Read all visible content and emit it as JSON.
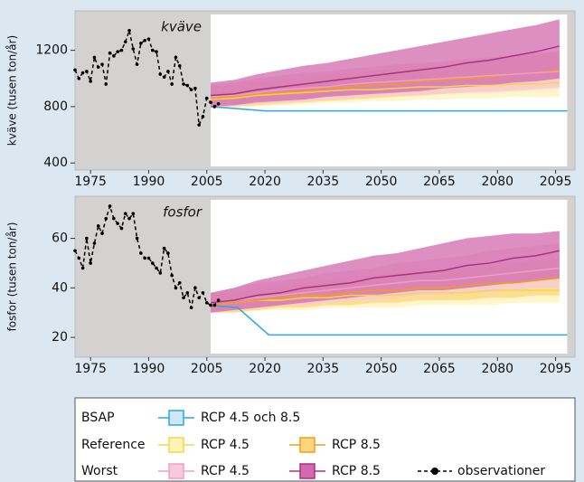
{
  "chart_data": [
    {
      "type": "line",
      "panel_label": "kväve",
      "y_label": "kväve (tusen ton/år)",
      "xlim": [
        1971,
        2100
      ],
      "xticks": [
        1975,
        1990,
        2005,
        2020,
        2035,
        2050,
        2065,
        2080,
        2095
      ],
      "ylim": [
        350,
        1480
      ],
      "yticks": [
        400,
        800,
        1200
      ],
      "projection_range": [
        2006,
        2098
      ],
      "series": [
        {
          "color": "#2aa7e0",
          "x": [
            2006,
            2020,
            2098
          ],
          "values": [
            800,
            770,
            770
          ]
        },
        {
          "color": "#f3d64a",
          "band_color": "#fff3b8",
          "x": [
            2006,
            2012,
            2018,
            2024,
            2030,
            2036,
            2042,
            2048,
            2054,
            2060,
            2066,
            2072,
            2078,
            2084,
            2090,
            2096
          ],
          "values": [
            850,
            860,
            880,
            890,
            900,
            910,
            920,
            920,
            930,
            940,
            940,
            950,
            950,
            960,
            960,
            970
          ],
          "low": [
            780,
            790,
            800,
            810,
            820,
            830,
            830,
            840,
            840,
            850,
            850,
            860,
            860,
            870,
            870,
            870
          ],
          "high": [
            930,
            940,
            960,
            980,
            990,
            1000,
            1010,
            1020,
            1030,
            1040,
            1040,
            1050,
            1060,
            1070,
            1070,
            1080
          ]
        },
        {
          "color": "#f29b1d",
          "band_color": "#fcd67c",
          "x": [
            2006,
            2012,
            2018,
            2024,
            2030,
            2036,
            2042,
            2048,
            2054,
            2060,
            2066,
            2072,
            2078,
            2084,
            2090,
            2096
          ],
          "values": [
            860,
            870,
            890,
            900,
            910,
            930,
            940,
            950,
            960,
            980,
            990,
            1000,
            1010,
            1030,
            1040,
            1060
          ],
          "low": [
            790,
            800,
            810,
            820,
            830,
            840,
            850,
            860,
            870,
            880,
            890,
            900,
            910,
            920,
            930,
            940
          ],
          "high": [
            940,
            950,
            980,
            990,
            1000,
            1030,
            1040,
            1060,
            1070,
            1090,
            1100,
            1120,
            1130,
            1150,
            1170,
            1190
          ]
        },
        {
          "color": "#ee9fc4",
          "band_color": "#f7c9de",
          "x": [
            2006,
            2012,
            2018,
            2024,
            2030,
            2036,
            2042,
            2048,
            2054,
            2060,
            2066,
            2072,
            2078,
            2084,
            2090,
            2096
          ],
          "values": [
            870,
            880,
            900,
            920,
            930,
            940,
            960,
            970,
            980,
            990,
            1000,
            1010,
            1020,
            1030,
            1040,
            1050
          ],
          "low": [
            800,
            800,
            820,
            830,
            840,
            850,
            860,
            870,
            880,
            880,
            890,
            900,
            900,
            910,
            920,
            930
          ],
          "high": [
            960,
            970,
            1000,
            1020,
            1040,
            1050,
            1070,
            1080,
            1100,
            1110,
            1120,
            1140,
            1150,
            1160,
            1180,
            1190
          ]
        },
        {
          "color": "#a8327f",
          "band_color": "#d16aae",
          "x": [
            2006,
            2012,
            2018,
            2024,
            2030,
            2036,
            2042,
            2048,
            2054,
            2060,
            2066,
            2072,
            2078,
            2084,
            2090,
            2096
          ],
          "values": [
            880,
            890,
            920,
            940,
            960,
            980,
            1000,
            1020,
            1040,
            1060,
            1080,
            1110,
            1130,
            1160,
            1190,
            1230
          ],
          "low": [
            800,
            810,
            830,
            840,
            850,
            870,
            880,
            890,
            900,
            910,
            930,
            940,
            950,
            970,
            980,
            1000
          ],
          "high": [
            970,
            990,
            1030,
            1060,
            1090,
            1110,
            1140,
            1170,
            1200,
            1230,
            1260,
            1290,
            1320,
            1350,
            1380,
            1420
          ]
        },
        {
          "color": "#000000",
          "style": "dashed",
          "markers": true,
          "x": [
            1971,
            1972,
            1973,
            1974,
            1975,
            1976,
            1977,
            1978,
            1979,
            1980,
            1981,
            1982,
            1983,
            1984,
            1985,
            1986,
            1987,
            1988,
            1989,
            1990,
            1991,
            1992,
            1993,
            1994,
            1995,
            1996,
            1997,
            1998,
            1999,
            2000,
            2001,
            2002,
            2003,
            2004,
            2005,
            2006,
            2007,
            2008
          ],
          "values": [
            1060,
            1000,
            1040,
            1050,
            980,
            1150,
            1080,
            1100,
            960,
            1180,
            1160,
            1190,
            1200,
            1260,
            1340,
            1210,
            1100,
            1250,
            1270,
            1280,
            1200,
            1190,
            1030,
            1010,
            1050,
            960,
            1150,
            1090,
            960,
            950,
            920,
            930,
            670,
            730,
            860,
            830,
            800,
            820
          ]
        }
      ]
    },
    {
      "type": "line",
      "panel_label": "fosfor",
      "y_label": "fosfor (tusen ton/år)",
      "xlim": [
        1971,
        2100
      ],
      "xticks": [
        1975,
        1990,
        2005,
        2020,
        2035,
        2050,
        2065,
        2080,
        2095
      ],
      "ylim": [
        12,
        77
      ],
      "yticks": [
        20,
        40,
        60
      ],
      "projection_range": [
        2006,
        2098
      ],
      "series": [
        {
          "color": "#2aa7e0",
          "x": [
            2006,
            2013,
            2021,
            2098
          ],
          "values": [
            33,
            32,
            21,
            21
          ]
        },
        {
          "color": "#f3d64a",
          "band_color": "#fff3b8",
          "x": [
            2006,
            2012,
            2018,
            2024,
            2030,
            2036,
            2042,
            2048,
            2054,
            2060,
            2066,
            2072,
            2078,
            2084,
            2090,
            2096
          ],
          "values": [
            33,
            34,
            35,
            35,
            36,
            36,
            37,
            37,
            37,
            38,
            38,
            38,
            39,
            39,
            39,
            39
          ],
          "low": [
            30,
            30,
            31,
            31,
            31,
            32,
            32,
            32,
            32,
            33,
            33,
            33,
            33,
            34,
            34,
            34
          ],
          "high": [
            37,
            38,
            39,
            40,
            40,
            41,
            42,
            42,
            43,
            43,
            44,
            44,
            45,
            45,
            45,
            46
          ]
        },
        {
          "color": "#f29b1d",
          "band_color": "#fcd67c",
          "x": [
            2006,
            2012,
            2018,
            2024,
            2030,
            2036,
            2042,
            2048,
            2054,
            2060,
            2066,
            2072,
            2078,
            2084,
            2090,
            2096
          ],
          "values": [
            33,
            34,
            35,
            36,
            37,
            37,
            38,
            39,
            39,
            40,
            40,
            41,
            42,
            42,
            43,
            44
          ],
          "low": [
            30,
            30,
            31,
            32,
            32,
            33,
            33,
            34,
            34,
            35,
            35,
            35,
            36,
            36,
            37,
            37
          ],
          "high": [
            37,
            38,
            40,
            41,
            42,
            43,
            44,
            45,
            46,
            47,
            47,
            48,
            49,
            50,
            51,
            52
          ]
        },
        {
          "color": "#ee9fc4",
          "band_color": "#f7c9de",
          "x": [
            2006,
            2012,
            2018,
            2024,
            2030,
            2036,
            2042,
            2048,
            2054,
            2060,
            2066,
            2072,
            2078,
            2084,
            2090,
            2096
          ],
          "values": [
            34,
            35,
            36,
            37,
            38,
            39,
            40,
            41,
            42,
            43,
            43,
            44,
            45,
            46,
            47,
            48
          ],
          "low": [
            30,
            31,
            32,
            33,
            33,
            34,
            35,
            35,
            36,
            37,
            37,
            38,
            38,
            39,
            40,
            40
          ],
          "high": [
            38,
            40,
            42,
            43,
            44,
            46,
            47,
            48,
            50,
            51,
            52,
            53,
            55,
            56,
            57,
            58
          ]
        },
        {
          "color": "#a8327f",
          "band_color": "#d16aae",
          "x": [
            2006,
            2012,
            2018,
            2024,
            2030,
            2036,
            2042,
            2048,
            2054,
            2060,
            2066,
            2072,
            2078,
            2084,
            2090,
            2096
          ],
          "values": [
            34,
            35,
            37,
            38,
            40,
            41,
            42,
            44,
            45,
            46,
            47,
            49,
            50,
            52,
            53,
            55
          ],
          "low": [
            30,
            31,
            32,
            33,
            34,
            35,
            36,
            37,
            38,
            39,
            39,
            40,
            41,
            42,
            43,
            44
          ],
          "high": [
            38,
            40,
            43,
            45,
            47,
            49,
            51,
            53,
            54,
            56,
            58,
            60,
            61,
            62,
            62,
            63
          ]
        },
        {
          "color": "#000000",
          "style": "dashed",
          "markers": true,
          "x": [
            1971,
            1972,
            1973,
            1974,
            1975,
            1976,
            1977,
            1978,
            1979,
            1980,
            1981,
            1982,
            1983,
            1984,
            1985,
            1986,
            1987,
            1988,
            1989,
            1990,
            1991,
            1992,
            1993,
            1994,
            1995,
            1996,
            1997,
            1998,
            1999,
            2000,
            2001,
            2002,
            2003,
            2004,
            2005,
            2006,
            2007,
            2008
          ],
          "values": [
            55,
            52,
            48,
            60,
            50,
            58,
            65,
            62,
            68,
            73,
            68,
            66,
            64,
            70,
            68,
            70,
            60,
            54,
            52,
            52,
            50,
            48,
            46,
            56,
            54,
            45,
            40,
            42,
            36,
            38,
            32,
            40,
            36,
            38,
            34,
            33,
            33,
            35
          ]
        }
      ]
    }
  ],
  "legend": {
    "rows": [
      {
        "label": "BSAP",
        "items": [
          {
            "name": "RCP 4.5 och 8.5",
            "color": "#2aa7e0",
            "fill": "#cfe6f5"
          }
        ]
      },
      {
        "label": "Reference",
        "items": [
          {
            "name": "RCP 4.5",
            "color": "#f3d64a",
            "fill": "#fff3b8"
          },
          {
            "name": "RCP 8.5",
            "color": "#f29b1d",
            "fill": "#fcd67c"
          }
        ]
      },
      {
        "label": "Worst",
        "items": [
          {
            "name": "RCP 4.5",
            "color": "#ee9fc4",
            "fill": "#f7c9de"
          },
          {
            "name": "RCP 8.5",
            "color": "#a8327f",
            "fill": "#d16aae"
          }
        ]
      }
    ],
    "observations": "observationer"
  }
}
